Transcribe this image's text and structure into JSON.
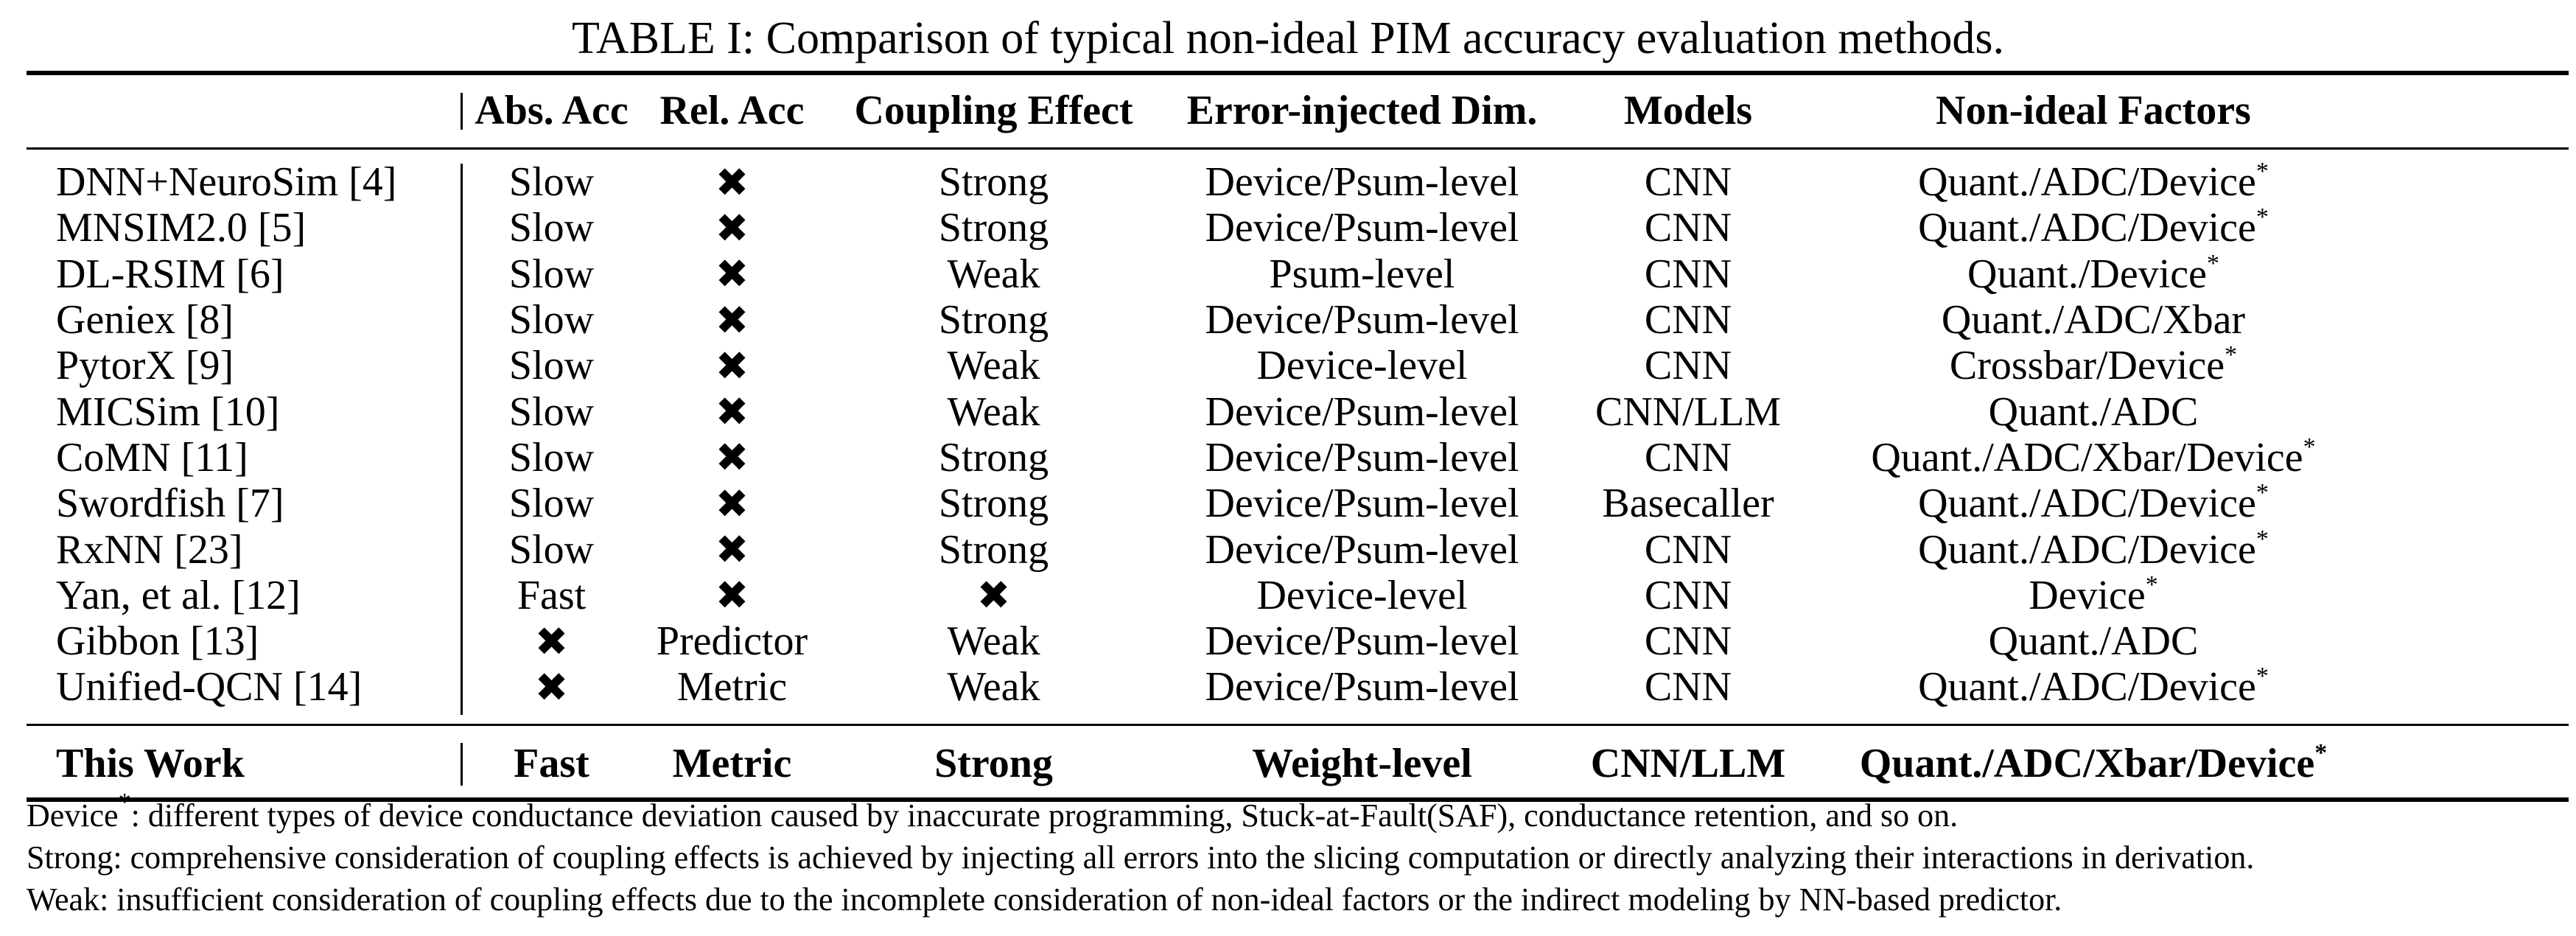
{
  "caption": "TABLE I: Comparison of typical non-ideal PIM accuracy evaluation methods.",
  "header": [
    "",
    "Abs. Acc",
    "Rel. Acc",
    "Coupling Effect",
    "Error-injected Dim.",
    "Models",
    "Non-ideal Factors"
  ],
  "rows": [
    {
      "name": "DNN+NeuroSim [4]",
      "abs": "Slow",
      "rel": "✖",
      "coupling": "Strong",
      "dim": "Device/Psum-level",
      "models": "CNN",
      "factors": "Quant./ADC/Device",
      "star": "*"
    },
    {
      "name": "MNSIM2.0 [5]",
      "abs": "Slow",
      "rel": "✖",
      "coupling": "Strong",
      "dim": "Device/Psum-level",
      "models": "CNN",
      "factors": "Quant./ADC/Device",
      "star": "*"
    },
    {
      "name": "DL-RSIM [6]",
      "abs": "Slow",
      "rel": "✖",
      "coupling": "Weak",
      "dim": "Psum-level",
      "models": "CNN",
      "factors": "Quant./Device",
      "star": "*"
    },
    {
      "name": "Geniex [8]",
      "abs": "Slow",
      "rel": "✖",
      "coupling": "Strong",
      "dim": "Device/Psum-level",
      "models": "CNN",
      "factors": "Quant./ADC/Xbar",
      "star": ""
    },
    {
      "name": "PytorX [9]",
      "abs": "Slow",
      "rel": "✖",
      "coupling": "Weak",
      "dim": "Device-level",
      "models": "CNN",
      "factors": "Crossbar/Device",
      "star": "*"
    },
    {
      "name": "MICSim [10]",
      "abs": "Slow",
      "rel": "✖",
      "coupling": "Weak",
      "dim": "Device/Psum-level",
      "models": "CNN/LLM",
      "factors": "Quant./ADC",
      "star": ""
    },
    {
      "name": "CoMN [11]",
      "abs": "Slow",
      "rel": "✖",
      "coupling": "Strong",
      "dim": "Device/Psum-level",
      "models": "CNN",
      "factors": "Quant./ADC/Xbar/Device",
      "star": "*"
    },
    {
      "name": "Swordfish [7]",
      "abs": "Slow",
      "rel": "✖",
      "coupling": "Strong",
      "dim": "Device/Psum-level",
      "models": "Basecaller",
      "factors": "Quant./ADC/Device",
      "star": "*"
    },
    {
      "name": "RxNN [23]",
      "abs": "Slow",
      "rel": "✖",
      "coupling": "Strong",
      "dim": "Device/Psum-level",
      "models": "CNN",
      "factors": "Quant./ADC/Device",
      "star": "*"
    },
    {
      "name": "Yan, et al. [12]",
      "abs": "Fast",
      "rel": "✖",
      "coupling": "✖",
      "dim": "Device-level",
      "models": "CNN",
      "factors": "Device",
      "star": "*"
    },
    {
      "name": "Gibbon [13]",
      "abs": "✖",
      "rel": "Predictor",
      "coupling": "Weak",
      "dim": "Device/Psum-level",
      "models": "CNN",
      "factors": "Quant./ADC",
      "star": ""
    },
    {
      "name": "Unified-QCN [14]",
      "abs": "✖",
      "rel": "Metric",
      "coupling": "Weak",
      "dim": "Device/Psum-level",
      "models": "CNN",
      "factors": "Quant./ADC/Device",
      "star": "*"
    }
  ],
  "this_work": {
    "name": "This Work",
    "abs": "Fast",
    "rel": "Metric",
    "coupling": "Strong",
    "dim": "Weight-level",
    "models": "CNN/LLM",
    "factors": "Quant./ADC/Xbar/Device",
    "star": "*"
  },
  "notes": {
    "device_term": "Device",
    "device_star": "*",
    "device_text": ": different types of device conductance deviation caused by inaccurate programming, Stuck-at-Fault(SAF), conductance retention, and so on.",
    "strong": "Strong: comprehensive consideration of coupling effects is achieved by injecting all errors into the slicing computation or directly analyzing their interactions in derivation.",
    "weak": "Weak: insufficient consideration of coupling effects due to the incomplete consideration of non-ideal factors or the indirect modeling by NN-based predictor."
  }
}
